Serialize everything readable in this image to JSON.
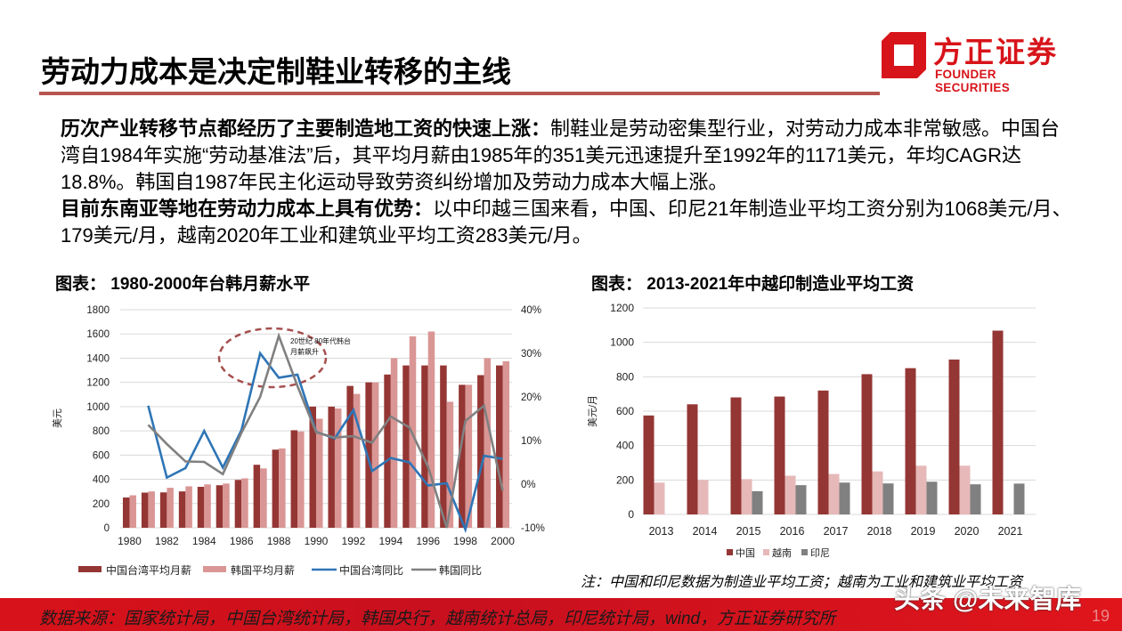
{
  "header": {
    "title": "劳动力成本是决定制鞋业转移的主线",
    "logo": {
      "cn": "方正证券",
      "en": "FOUNDER SECURITIES",
      "color": "#d7141a"
    },
    "rule_color": "#b85450"
  },
  "body": {
    "p1_bold": "历次产业转移节点都经历了主要制造地工资的快速上涨：",
    "p1_text": "制鞋业是劳动密集型行业，对劳动力成本非常敏感。中国台湾自1984年实施“劳动基准法”后，其平均月薪由1985年的351美元迅速提升至1992年的1171美元，年均CAGR达18.8%。韩国自1987年民主化运动导致劳资纠纷增加及劳动力成本大幅上涨。",
    "p2_bold": "目前东南亚等地在劳动力成本上具有优势：",
    "p2_text": "以中印越三国来看，中国、印尼21年制造业平均工资分别为1068美元/月、179美元/月，越南2020年工业和建筑业平均工资283美元/月。"
  },
  "chart_left": {
    "title": "图表：  1980-2000年台韩月薪水平",
    "annotation": "20世纪80年代韩台月薪飙升",
    "ylabel": "美元",
    "legend": [
      "中国台湾平均月薪",
      "韩国平均月薪",
      "中国台湾同比",
      "韩国同比"
    ]
  },
  "chart_right": {
    "title": "图表：  2013-2021年中越印制造业平均工资",
    "ylabel": "美元/月",
    "legend": [
      "中国",
      "越南",
      "印尼"
    ],
    "note": "注：中国和印尼数据为制造业平均工资；越南为工业和建筑业平均工资"
  },
  "chart_data": [
    {
      "type": "bar",
      "title": "1980-2000年台韩月薪水平",
      "xlabel": "",
      "ylabel": "美元",
      "y2label": "",
      "ylim": [
        0,
        1800
      ],
      "y2lim": [
        -0.1,
        0.4
      ],
      "yticks": [
        0,
        200,
        400,
        600,
        800,
        1000,
        1200,
        1400,
        1600,
        1800
      ],
      "y2ticks": [
        "-10%",
        "0%",
        "10%",
        "20%",
        "30%",
        "40%"
      ],
      "categories": [
        1980,
        1981,
        1982,
        1983,
        1984,
        1985,
        1986,
        1987,
        1988,
        1989,
        1990,
        1991,
        1992,
        1993,
        1994,
        1995,
        1996,
        1997,
        1998,
        1999,
        2000
      ],
      "xtick_labels": [
        "1980",
        "1982",
        "1984",
        "1986",
        "1988",
        "1990",
        "1992",
        "1994",
        "1996",
        "1998",
        "2000"
      ],
      "series": [
        {
          "name": "中国台湾平均月薪",
          "type": "bar",
          "axis": "left",
          "color": "#943634",
          "values": [
            250,
            290,
            292,
            300,
            338,
            351,
            395,
            520,
            645,
            805,
            1000,
            1000,
            1171,
            1200,
            1265,
            1340,
            1340,
            1340,
            1180,
            1260,
            1340
          ]
        },
        {
          "name": "韩国平均月薪",
          "type": "bar",
          "axis": "left",
          "color": "#d99694",
          "values": [
            268,
            300,
            330,
            342,
            358,
            365,
            408,
            490,
            655,
            795,
            900,
            985,
            1105,
            1200,
            1400,
            1580,
            1620,
            1040,
            1180,
            1400,
            1375
          ]
        },
        {
          "name": "中国台湾同比",
          "type": "line",
          "axis": "right",
          "color": "#2e75b6",
          "values": [
            null,
            0.18,
            0.015,
            0.037,
            0.122,
            0.038,
            0.124,
            0.3,
            0.244,
            0.251,
            0.12,
            0.105,
            0.17,
            0.03,
            0.06,
            0.05,
            -0.003,
            0.002,
            -0.105,
            0.065,
            0.058
          ]
        },
        {
          "name": "韩国同比",
          "type": "line",
          "axis": "right",
          "color": "#808080",
          "values": [
            null,
            0.136,
            0.092,
            0.052,
            0.051,
            0.023,
            0.118,
            0.2,
            0.34,
            0.225,
            0.119,
            0.107,
            0.11,
            0.095,
            0.155,
            0.13,
            0.04,
            -0.1,
            0.145,
            0.18,
            -0.015
          ]
        }
      ],
      "legend_position": "bottom",
      "grid": true
    },
    {
      "type": "bar",
      "title": "2013-2021年中越印制造业平均工资",
      "xlabel": "",
      "ylabel": "美元/月",
      "ylim": [
        0,
        1200
      ],
      "yticks": [
        0,
        200,
        400,
        600,
        800,
        1000,
        1200
      ],
      "categories": [
        "2013",
        "2014",
        "2015",
        "2016",
        "2017",
        "2018",
        "2019",
        "2020",
        "2021"
      ],
      "series": [
        {
          "name": "中国",
          "color": "#943634",
          "values": [
            575,
            640,
            680,
            685,
            720,
            815,
            850,
            900,
            1068
          ]
        },
        {
          "name": "越南",
          "color": "#e6b9b8",
          "values": [
            185,
            200,
            205,
            225,
            235,
            250,
            283,
            283,
            null
          ]
        },
        {
          "name": "印尼",
          "color": "#808080",
          "values": [
            null,
            null,
            135,
            170,
            185,
            180,
            190,
            175,
            179
          ]
        }
      ],
      "legend_position": "bottom",
      "grid": true
    }
  ],
  "footer": {
    "source": "数据来源：国家统计局，中国台湾统计局，韩国央行，越南统计总局，印尼统计局，wind，方正证券研究所",
    "page": "19",
    "watermark": "头条 @未来智库"
  }
}
